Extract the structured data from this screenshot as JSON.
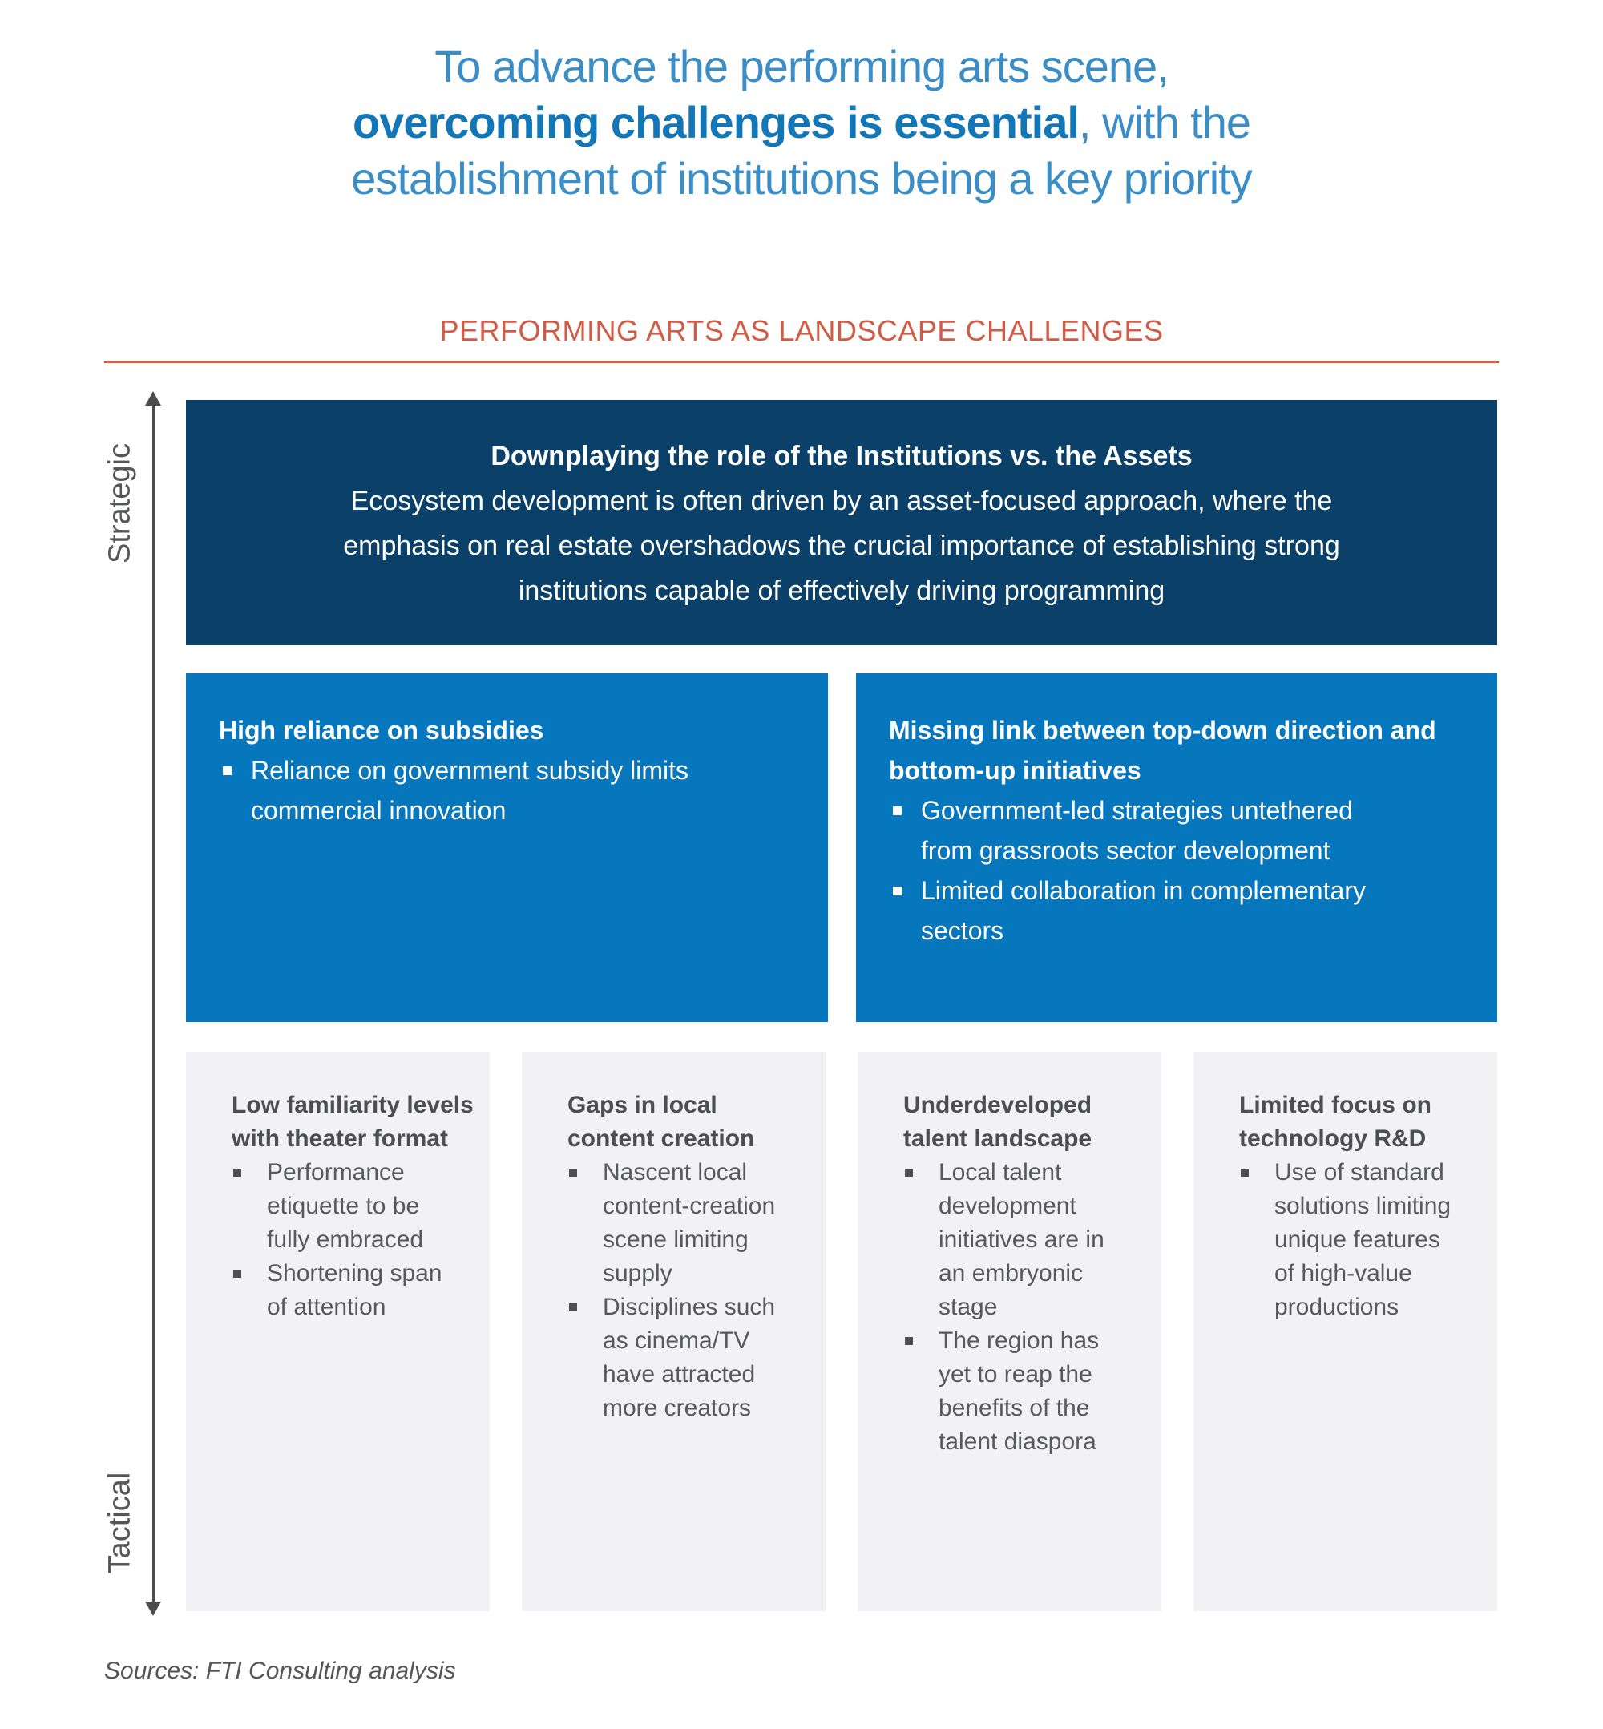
{
  "title": {
    "line1": "To advance the performing arts scene,",
    "line2_bold": "overcoming challenges is essential",
    "line2_rest": ", with the",
    "line3": "establishment of institutions being a key priority"
  },
  "section_heading": "PERFORMING ARTS AS LANDSCAPE CHALLENGES",
  "axis": {
    "top_label": "Strategic",
    "bottom_label": "Tactical"
  },
  "strategic_card": {
    "title": "Downplaying the role of the Institutions vs. the Assets",
    "body": "Ecosystem development is often driven by an asset-focused approach, where the emphasis on real estate overshadows the crucial importance of establishing strong institutions capable of effectively driving programming"
  },
  "mid_cards": [
    {
      "title": "High reliance on subsidies",
      "bullets": [
        "Reliance on government subsidy limits commercial innovation"
      ]
    },
    {
      "title": "Missing link between top-down direction and bottom-up initiatives",
      "bullets": [
        "Government-led strategies untethered from grassroots sector development",
        "Limited collaboration in complementary sectors"
      ]
    }
  ],
  "tactical_cards": [
    {
      "title": "Low familiarity levels with theater format",
      "bullets": [
        "Performance etiquette to be fully embraced",
        "Shortening span of attention"
      ]
    },
    {
      "title": "Gaps in local content creation",
      "bullets": [
        "Nascent local content-creation scene limiting supply",
        "Disciplines such as cinema/TV have attracted more creators"
      ]
    },
    {
      "title": "Underdeveloped talent landscape",
      "bullets": [
        "Local talent development initiatives are in an embryonic stage",
        "The region has yet to reap the benefits of the talent diaspora"
      ]
    },
    {
      "title": "Limited focus on technology R&D",
      "bullets": [
        "Use of standard solutions limiting unique features of high-value productions"
      ]
    }
  ],
  "footer": {
    "sources": "Sources: FTI Consulting analysis"
  },
  "colors": {
    "navy": "#0b4169",
    "blue": "#0676bd",
    "orange": "#d15b45",
    "title_light_blue": "#3b8dc6",
    "title_bold_blue": "#1377b7",
    "card_gray": "#f2f2f4",
    "text_gray": "#58595b"
  }
}
